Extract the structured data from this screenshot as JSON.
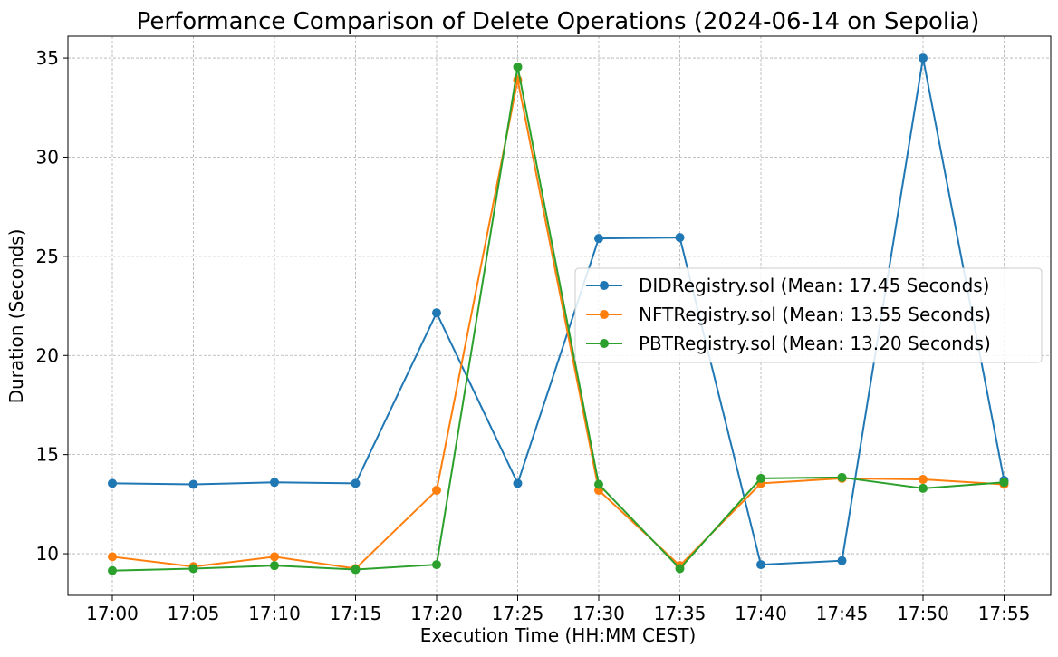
{
  "chart_data": {
    "type": "line",
    "title": "Performance Comparison of Delete Operations (2024-06-14 on Sepolia)",
    "xlabel": "Execution Time (HH:MM CEST)",
    "ylabel": "Duration (Seconds)",
    "categories": [
      "17:00",
      "17:05",
      "17:10",
      "17:15",
      "17:20",
      "17:25",
      "17:30",
      "17:35",
      "17:40",
      "17:45",
      "17:50",
      "17:55"
    ],
    "ylim": [
      7.9,
      36.1
    ],
    "yticks": [
      10,
      15,
      20,
      25,
      30,
      35
    ],
    "grid": true,
    "legend_position": "center-right",
    "series": [
      {
        "name": "DIDRegistry.sol (Mean: 17.45 Seconds)",
        "color": "#1f77b4",
        "values": [
          13.55,
          13.5,
          13.6,
          13.55,
          22.15,
          13.55,
          25.9,
          25.95,
          9.45,
          9.65,
          35.0,
          13.7
        ]
      },
      {
        "name": "NFTRegistry.sol (Mean: 13.55 Seconds)",
        "color": "#ff7f0e",
        "values": [
          9.85,
          9.35,
          9.85,
          9.25,
          13.2,
          33.9,
          13.2,
          9.4,
          13.55,
          13.8,
          13.75,
          13.5
        ]
      },
      {
        "name": "PBTRegistry.sol (Mean: 13.20 Seconds)",
        "color": "#2ca02c",
        "values": [
          9.15,
          9.25,
          9.4,
          9.2,
          9.45,
          34.55,
          13.5,
          9.25,
          13.8,
          13.85,
          13.3,
          13.6
        ]
      }
    ]
  }
}
